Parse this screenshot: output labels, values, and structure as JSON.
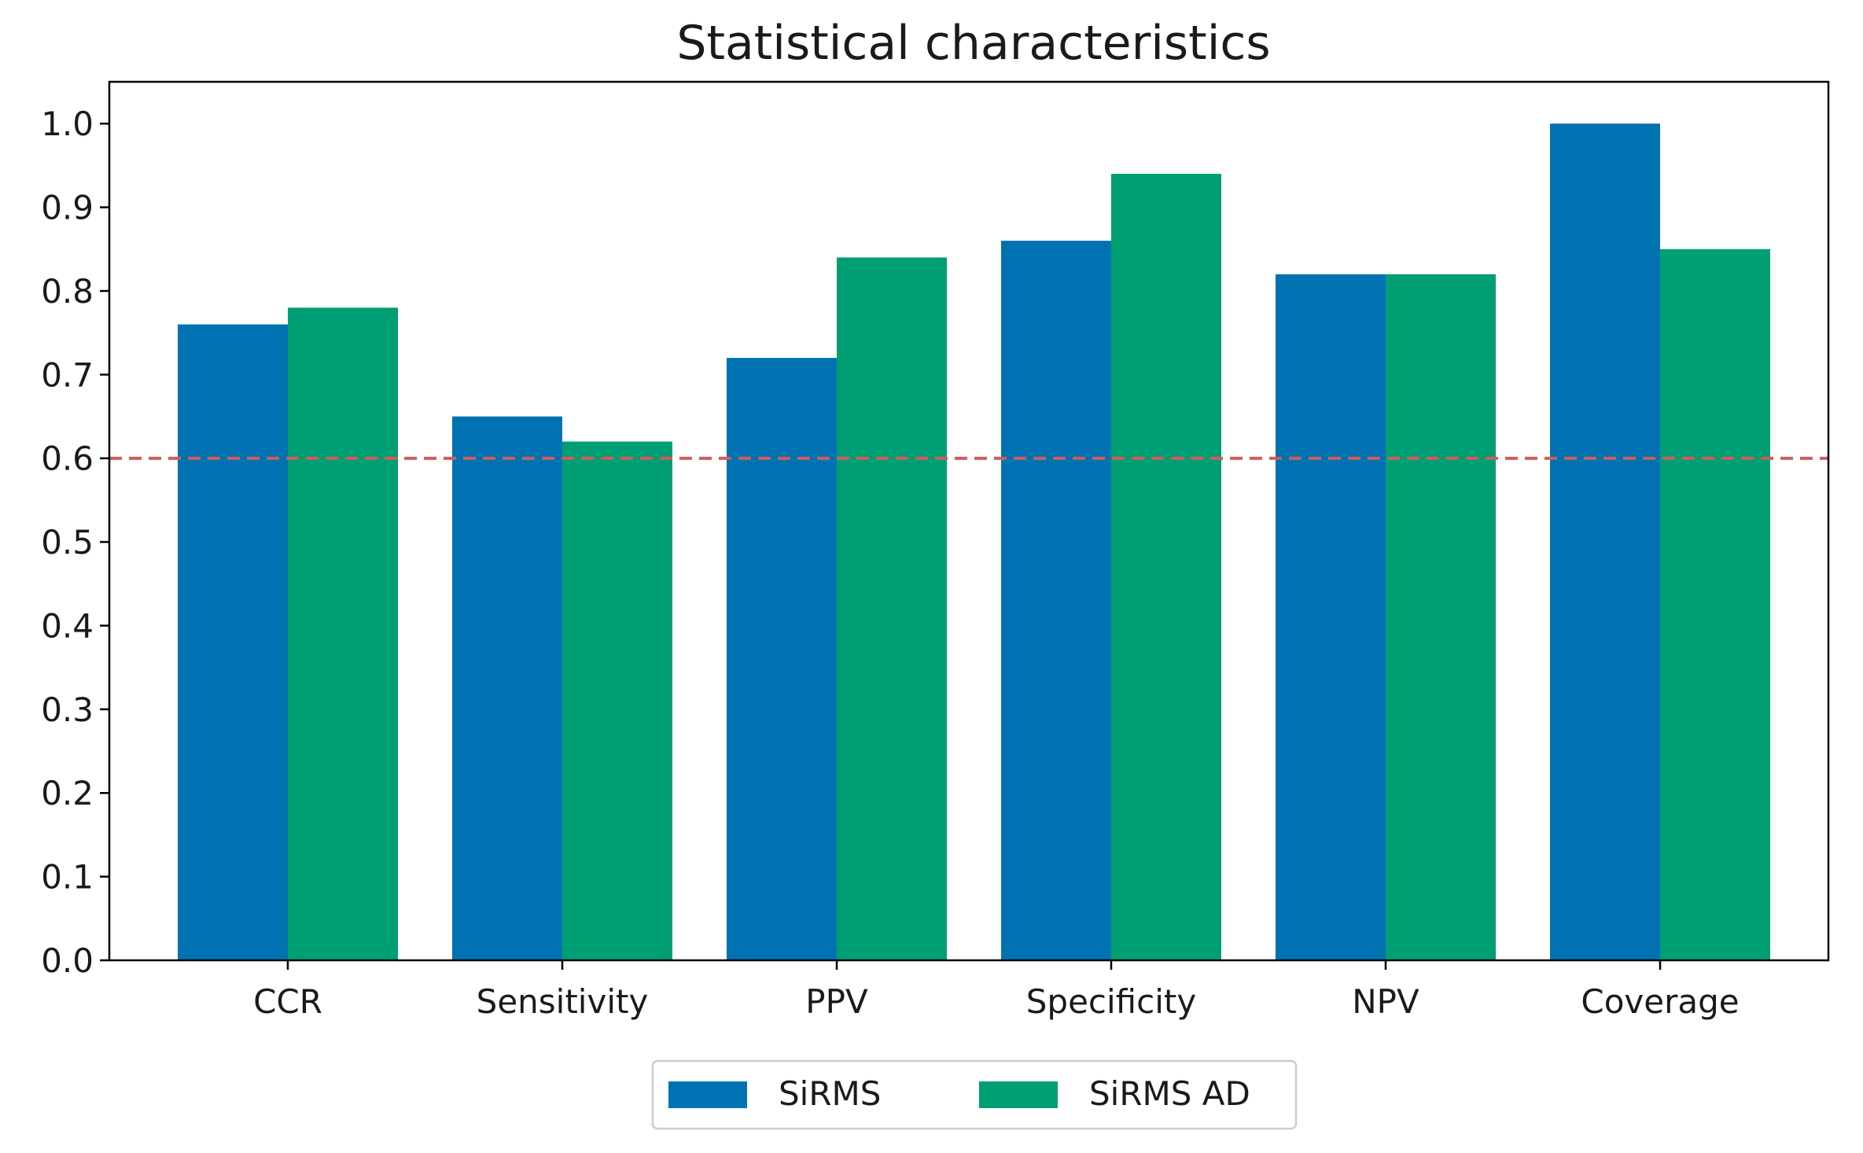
{
  "chart_data": {
    "type": "bar",
    "title": "Statistical characteristics",
    "xlabel": "",
    "ylabel": "",
    "categories": [
      "CCR",
      "Sensitivity",
      "PPV",
      "Specificity",
      "NPV",
      "Coverage"
    ],
    "series": [
      {
        "name": "SiRMS",
        "color": "#0072b2",
        "values": [
          0.76,
          0.65,
          0.72,
          0.86,
          0.82,
          1.0
        ]
      },
      {
        "name": "SiRMS AD",
        "color": "#009e73",
        "values": [
          0.78,
          0.62,
          0.84,
          0.94,
          0.82,
          0.85
        ]
      }
    ],
    "ylim": [
      0,
      1.05
    ],
    "yticks": [
      "0.0",
      "0.1",
      "0.2",
      "0.3",
      "0.4",
      "0.5",
      "0.6",
      "0.7",
      "0.8",
      "0.9",
      "1.0"
    ],
    "reference_line": {
      "value": 0.6,
      "color": "#cd5c5c",
      "style": "dashed"
    },
    "legend_position": "bottom-center",
    "grid": false
  }
}
